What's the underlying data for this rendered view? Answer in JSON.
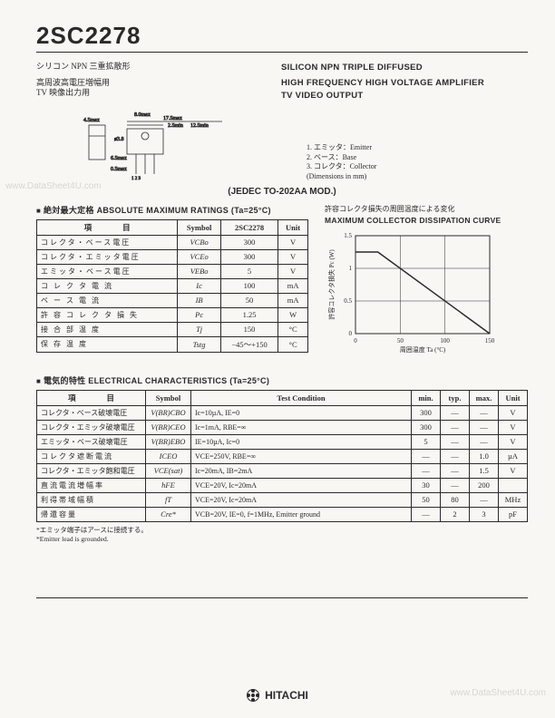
{
  "part_number": "2SC2278",
  "jp_type": "シリコン NPN 三重拡散形",
  "jp_app1": "高周波高電圧増幅用",
  "jp_app2": "TV 映像出力用",
  "en_type": "SILICON NPN TRIPLE DIFFUSED",
  "en_app1": "HIGH FREQUENCY HIGH VOLTAGE AMPLIFIER",
  "en_app2": "TV VIDEO OUTPUT",
  "jedec": "(JEDEC TO-202AA MOD.)",
  "pin_notes": [
    "1. エミッタ：Emitter",
    "2. ベース：Base",
    "3. コレクタ：Collector",
    "(Dimensions in mm)"
  ],
  "pkg_dims": {
    "body_w": "8.0max",
    "body_d": "4.5max",
    "lead_pitch": "2.5min",
    "overall": "17.5max",
    "tab_h": "6.5max",
    "hole": "ø3.8",
    "lead_l": "12.5min",
    "lead_t": "0.5max"
  },
  "ratings_title_jp": "絶対最大定格",
  "ratings_title_en": "ABSOLUTE MAXIMUM RATINGS",
  "ratings_ta": "(Ta=25°C)",
  "ratings_headers": [
    "項　　　　目",
    "Symbol",
    "2SC2278",
    "Unit"
  ],
  "ratings_rows": [
    {
      "item": "コレクタ・ベース電圧",
      "sym": "VCBo",
      "val": "300",
      "unit": "V"
    },
    {
      "item": "コレクタ・エミッタ電圧",
      "sym": "VCEo",
      "val": "300",
      "unit": "V"
    },
    {
      "item": "エミッタ・ベース電圧",
      "sym": "VEBo",
      "val": "5",
      "unit": "V"
    },
    {
      "item": "コ レ ク タ 電 流",
      "sym": "Ic",
      "val": "100",
      "unit": "mA"
    },
    {
      "item": "ベ ー ス 電 流",
      "sym": "IB",
      "val": "50",
      "unit": "mA"
    },
    {
      "item": "許 容 コ レ ク タ 損 失",
      "sym": "Pc",
      "val": "1.25",
      "unit": "W"
    },
    {
      "item": "接 合 部 温 度",
      "sym": "Tj",
      "val": "150",
      "unit": "°C"
    },
    {
      "item": "保 存 温 度",
      "sym": "Tstg",
      "val": "−45〜+150",
      "unit": "°C"
    }
  ],
  "curve_title_jp": "許容コレクタ損失の周囲温度による変化",
  "curve_title_en": "MAXIMUM COLLECTOR DISSIPATION CURVE",
  "curve": {
    "xlim": [
      0,
      150
    ],
    "xticks": [
      0,
      50,
      100,
      150
    ],
    "ylim": [
      0,
      1.5
    ],
    "yticks": [
      0,
      0.5,
      1.0,
      1.5
    ],
    "xlabel": "周囲温度 Ta (°C)",
    "ylabel": "許容コレクタ損失 Pc (W)",
    "line": [
      [
        0,
        1.25
      ],
      [
        25,
        1.25
      ],
      [
        150,
        0
      ]
    ],
    "line_color": "#2a2a2a",
    "grid_color": "#2a2a2a",
    "bg": "#f8f7f4"
  },
  "elec_title_jp": "電気的特性",
  "elec_title_en": "ELECTRICAL CHARACTERISTICS",
  "elec_ta": "(Ta=25°C)",
  "elec_headers": [
    "項　　　　目",
    "Symbol",
    "Test Condition",
    "min.",
    "typ.",
    "max.",
    "Unit"
  ],
  "elec_rows": [
    {
      "item": "コレクタ・ベース破壊電圧",
      "sym": "V(BR)CBO",
      "cond": "Ic=10µA, IE=0",
      "min": "300",
      "typ": "—",
      "max": "—",
      "unit": "V"
    },
    {
      "item": "コレクタ・エミッタ破壊電圧",
      "sym": "V(BR)CEO",
      "cond": "Ic=1mA, RBE=∞",
      "min": "300",
      "typ": "—",
      "max": "—",
      "unit": "V"
    },
    {
      "item": "エミッタ・ベース破壊電圧",
      "sym": "V(BR)EBO",
      "cond": "IE=10µA, Ic=0",
      "min": "5",
      "typ": "—",
      "max": "—",
      "unit": "V"
    },
    {
      "item": "コ レ ク タ 遮 断 電 流",
      "sym": "ICEO",
      "cond": "VCE=250V, RBE=∞",
      "min": "—",
      "typ": "—",
      "max": "1.0",
      "unit": "µA"
    },
    {
      "item": "コレクタ・エミッタ飽和電圧",
      "sym": "VCE(sat)",
      "cond": "Ic=20mA, IB=2mA",
      "min": "—",
      "typ": "—",
      "max": "1.5",
      "unit": "V"
    },
    {
      "item": "直 流 電 流 増 幅 率",
      "sym": "hFE",
      "cond": "VCE=20V, Ic=20mA",
      "min": "30",
      "typ": "—",
      "max": "200",
      "unit": ""
    },
    {
      "item": "利 得 帯 域 幅 積",
      "sym": "fT",
      "cond": "VCE=20V, Ic=20mA",
      "min": "50",
      "typ": "80",
      "max": "—",
      "unit": "MHz"
    },
    {
      "item": "帰 還 容 量",
      "sym": "Cre*",
      "cond": "VCB=20V, IE=0, f=1MHz, Emitter ground",
      "min": "—",
      "typ": "2",
      "max": "3",
      "unit": "pF"
    }
  ],
  "footnotes_jp": "*エミッタ端子はアースに接続する。",
  "footnotes_en": "*Emitter lead is grounded.",
  "manufacturer": "HITACHI",
  "watermark_left": "www.DataSheet4U.com",
  "watermark_right": "www.DataSheet4U.com"
}
